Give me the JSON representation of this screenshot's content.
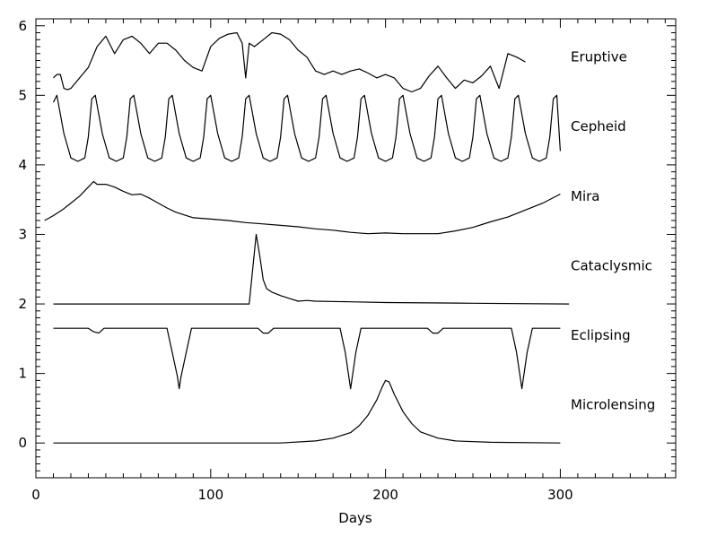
{
  "chart_data": {
    "type": "line",
    "title": "",
    "xlabel": "Days",
    "ylabel": "",
    "xlim": [
      0,
      366
    ],
    "ylim": [
      -0.5,
      6.1
    ],
    "grid": false,
    "legend": "none",
    "x_ticks": [
      0,
      100,
      200,
      300
    ],
    "y_ticks": [
      0,
      1,
      2,
      3,
      4,
      5,
      6
    ],
    "x_minor_step": 10,
    "y_minor_step": 0.1,
    "line_color": "#000000",
    "series": [
      {
        "name": "Eruptive",
        "x": [
          10,
          12,
          14,
          16,
          18,
          20,
          25,
          30,
          35,
          40,
          45,
          50,
          55,
          60,
          65,
          70,
          75,
          80,
          85,
          90,
          95,
          100,
          105,
          110,
          115,
          118,
          120,
          122,
          125,
          130,
          135,
          140,
          145,
          150,
          155,
          160,
          165,
          170,
          175,
          180,
          185,
          190,
          195,
          200,
          205,
          210,
          215,
          220,
          225,
          230,
          235,
          240,
          245,
          250,
          255,
          260,
          265,
          270,
          275,
          280
        ],
        "y": [
          5.25,
          5.3,
          5.3,
          5.1,
          5.08,
          5.1,
          5.25,
          5.4,
          5.7,
          5.85,
          5.6,
          5.8,
          5.85,
          5.75,
          5.6,
          5.75,
          5.75,
          5.65,
          5.5,
          5.4,
          5.35,
          5.7,
          5.82,
          5.88,
          5.9,
          5.75,
          5.25,
          5.75,
          5.7,
          5.8,
          5.9,
          5.88,
          5.8,
          5.65,
          5.55,
          5.35,
          5.3,
          5.35,
          5.3,
          5.35,
          5.38,
          5.32,
          5.25,
          5.3,
          5.25,
          5.1,
          5.05,
          5.1,
          5.28,
          5.42,
          5.25,
          5.1,
          5.22,
          5.18,
          5.28,
          5.42,
          5.1,
          5.6,
          5.55,
          5.48
        ]
      },
      {
        "name": "Cepheid",
        "x": [
          10,
          12,
          16,
          20,
          24,
          28,
          30,
          32,
          34,
          38,
          42,
          46,
          50,
          52,
          54,
          56,
          60,
          64,
          68,
          72,
          74,
          76,
          78,
          82,
          86,
          90,
          94,
          96,
          98,
          100,
          104,
          108,
          112,
          116,
          118,
          120,
          122,
          126,
          130,
          134,
          138,
          140,
          142,
          144,
          148,
          152,
          156,
          160,
          162,
          164,
          166,
          170,
          174,
          178,
          182,
          184,
          186,
          188,
          192,
          196,
          200,
          204,
          206,
          208,
          210,
          214,
          218,
          222,
          226,
          228,
          230,
          232,
          236,
          240,
          244,
          248,
          250,
          252,
          254,
          258,
          262,
          266,
          270,
          272,
          274,
          276,
          280,
          284,
          288,
          292,
          294,
          296,
          298,
          300
        ],
        "y": [
          4.9,
          5.0,
          4.45,
          4.1,
          4.05,
          4.1,
          4.4,
          4.95,
          5.0,
          4.45,
          4.1,
          4.05,
          4.1,
          4.4,
          4.95,
          5.0,
          4.45,
          4.1,
          4.05,
          4.1,
          4.4,
          4.95,
          5.0,
          4.45,
          4.1,
          4.05,
          4.1,
          4.4,
          4.95,
          5.0,
          4.45,
          4.1,
          4.05,
          4.1,
          4.4,
          4.95,
          5.0,
          4.45,
          4.1,
          4.05,
          4.1,
          4.4,
          4.95,
          5.0,
          4.45,
          4.1,
          4.05,
          4.1,
          4.4,
          4.95,
          5.0,
          4.45,
          4.1,
          4.05,
          4.1,
          4.4,
          4.95,
          5.0,
          4.45,
          4.1,
          4.05,
          4.1,
          4.4,
          4.95,
          5.0,
          4.45,
          4.1,
          4.05,
          4.1,
          4.4,
          4.95,
          5.0,
          4.45,
          4.1,
          4.05,
          4.1,
          4.4,
          4.95,
          5.0,
          4.45,
          4.1,
          4.05,
          4.1,
          4.4,
          4.95,
          5.0,
          4.45,
          4.1,
          4.05,
          4.1,
          4.4,
          4.95,
          5.0,
          4.2
        ]
      },
      {
        "name": "Mira",
        "x": [
          5,
          10,
          15,
          20,
          25,
          30,
          33,
          35,
          40,
          45,
          50,
          55,
          60,
          65,
          70,
          75,
          80,
          85,
          90,
          100,
          110,
          120,
          130,
          140,
          150,
          160,
          170,
          180,
          190,
          200,
          210,
          220,
          230,
          240,
          250,
          260,
          270,
          280,
          290,
          300
        ],
        "y": [
          3.2,
          3.27,
          3.35,
          3.45,
          3.55,
          3.68,
          3.76,
          3.72,
          3.72,
          3.68,
          3.62,
          3.57,
          3.58,
          3.52,
          3.45,
          3.38,
          3.32,
          3.28,
          3.24,
          3.22,
          3.2,
          3.17,
          3.15,
          3.13,
          3.11,
          3.08,
          3.06,
          3.03,
          3.01,
          3.02,
          3.01,
          3.01,
          3.01,
          3.05,
          3.1,
          3.18,
          3.25,
          3.35,
          3.45,
          3.58
        ]
      },
      {
        "name": "Cataclysmic",
        "x": [
          10,
          50,
          100,
          122,
          124,
          126,
          128,
          130,
          132,
          135,
          140,
          145,
          150,
          155,
          160,
          180,
          200,
          250,
          305
        ],
        "y": [
          2.0,
          2.0,
          2.0,
          2.0,
          2.5,
          3.0,
          2.7,
          2.35,
          2.22,
          2.17,
          2.12,
          2.08,
          2.04,
          2.05,
          2.04,
          2.03,
          2.02,
          2.01,
          2.0
        ]
      },
      {
        "name": "Eclipsing",
        "x": [
          10,
          30,
          33,
          36,
          39,
          75,
          78,
          81,
          82,
          83,
          86,
          89,
          127,
          130,
          133,
          136,
          174,
          177,
          180,
          183,
          186,
          224,
          227,
          230,
          233,
          236,
          272,
          275,
          278,
          281,
          284,
          300
        ],
        "y": [
          1.65,
          1.65,
          1.6,
          1.58,
          1.65,
          1.65,
          1.3,
          0.95,
          0.78,
          0.95,
          1.3,
          1.65,
          1.65,
          1.58,
          1.58,
          1.65,
          1.65,
          1.3,
          0.78,
          1.3,
          1.65,
          1.65,
          1.58,
          1.58,
          1.65,
          1.65,
          1.65,
          1.3,
          0.78,
          1.3,
          1.65,
          1.65
        ]
      },
      {
        "name": "Microlensing",
        "x": [
          10,
          100,
          140,
          160,
          170,
          180,
          185,
          190,
          195,
          198,
          200,
          202,
          205,
          210,
          215,
          220,
          230,
          240,
          260,
          300
        ],
        "y": [
          0.0,
          0.0,
          0.0,
          0.03,
          0.07,
          0.15,
          0.25,
          0.4,
          0.62,
          0.8,
          0.9,
          0.88,
          0.7,
          0.45,
          0.28,
          0.16,
          0.07,
          0.03,
          0.01,
          0.0
        ]
      }
    ],
    "series_label_y": [
      5.55,
      4.55,
      3.55,
      2.55,
      1.55,
      0.55
    ]
  }
}
